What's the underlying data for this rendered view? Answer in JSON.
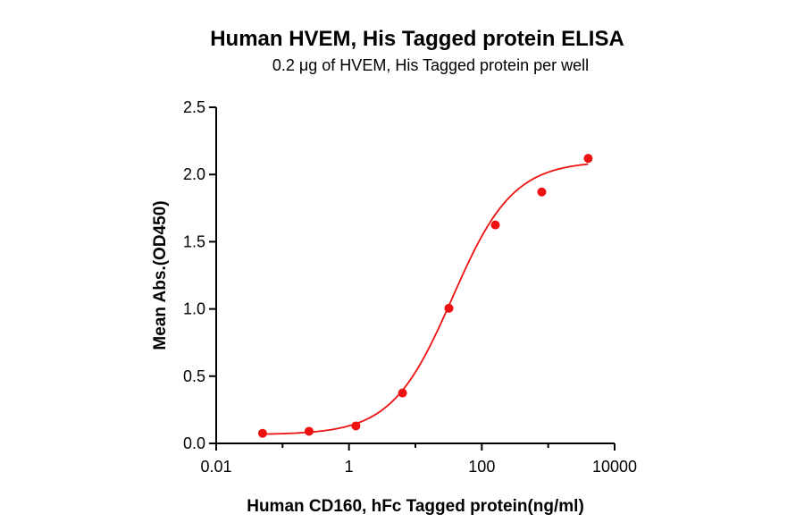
{
  "chart_data": {
    "type": "scatter",
    "title": "Human HVEM, His Tagged protein ELISA",
    "subtitle": "0.2 μg of HVEM, His Tagged protein per well",
    "xlabel": "Human CD160, hFc Tagged protein(ng/ml)",
    "ylabel": "Mean Abs.(OD450)",
    "x_scale": "log",
    "xlim": [
      0.01,
      10000
    ],
    "ylim": [
      0,
      2.5
    ],
    "x_ticks": [
      0.01,
      1,
      100,
      10000
    ],
    "x_tick_labels": [
      "0.01",
      "1",
      "100",
      "10000"
    ],
    "y_ticks": [
      0,
      0.5,
      1,
      1.5,
      2,
      2.5
    ],
    "y_tick_labels": [
      "0.0",
      "0.5",
      "1.0",
      "1.5",
      "2.0",
      "2.5"
    ],
    "grid": false,
    "color": "#ee1111",
    "series": [
      {
        "x": [
          0.05,
          0.25,
          1.27,
          6.4,
          32,
          160,
          800,
          4000
        ],
        "y": [
          0.075,
          0.09,
          0.13,
          0.375,
          1.005,
          1.625,
          1.87,
          2.12
        ]
      }
    ],
    "fit_curve": {
      "model": "4PL",
      "bottom": 0.065,
      "top": 2.1,
      "ec50": 36,
      "hill": 0.95
    }
  }
}
